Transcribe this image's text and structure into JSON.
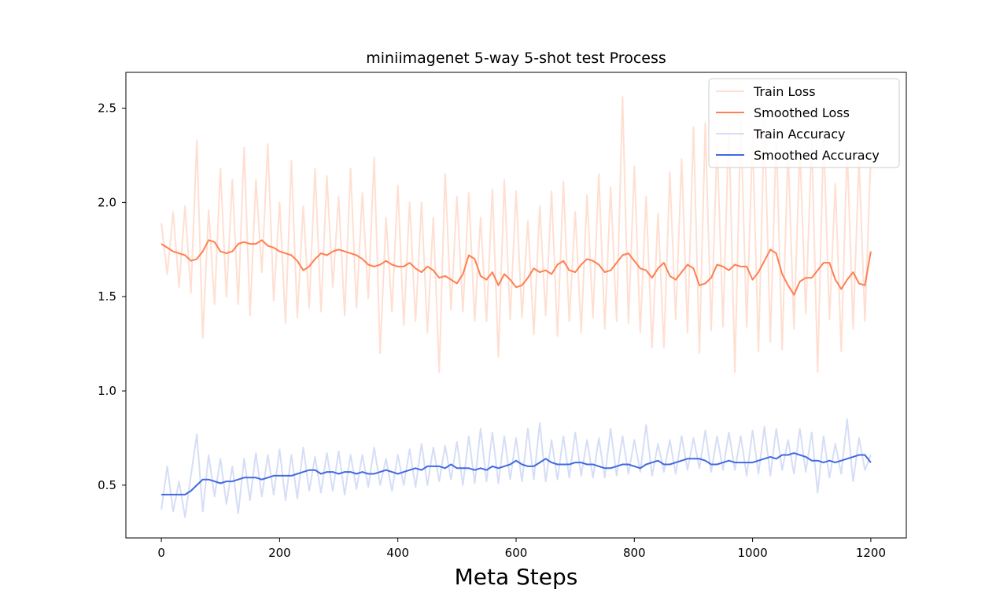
{
  "chart_data": {
    "type": "line",
    "title": "miniimagenet 5-way 5-shot test Process",
    "xlabel": "Meta Steps",
    "ylabel": "",
    "xlim": [
      -60,
      1260
    ],
    "ylim": [
      0.22,
      2.69
    ],
    "xticks": [
      0,
      200,
      400,
      600,
      800,
      1000,
      1200
    ],
    "xtick_labels": [
      "0",
      "200",
      "400",
      "600",
      "800",
      "1000",
      "1200"
    ],
    "yticks": [
      0.5,
      1.0,
      1.5,
      2.0,
      2.5
    ],
    "ytick_labels": [
      "0.5",
      "1.0",
      "1.5",
      "2.0",
      "2.5"
    ],
    "grid": false,
    "legend_position": "top-right",
    "colors": {
      "train_loss": "#ffdfd2",
      "smoothed_loss": "#ff7f50",
      "train_acc": "#d6def7",
      "smoothed_acc": "#4169e1"
    },
    "series": [
      {
        "name": "Train Loss",
        "key": "train_loss",
        "style": "raw-noisy",
        "x": [
          0,
          10,
          20,
          30,
          40,
          50,
          60,
          70,
          80,
          90,
          100,
          110,
          120,
          130,
          140,
          150,
          160,
          170,
          180,
          190,
          200,
          210,
          220,
          230,
          240,
          250,
          260,
          270,
          280,
          290,
          300,
          310,
          320,
          330,
          340,
          350,
          360,
          370,
          380,
          390,
          400,
          410,
          420,
          430,
          440,
          450,
          460,
          470,
          480,
          490,
          500,
          510,
          520,
          530,
          540,
          550,
          560,
          570,
          580,
          590,
          600,
          610,
          620,
          630,
          640,
          650,
          660,
          670,
          680,
          690,
          700,
          710,
          720,
          730,
          740,
          750,
          760,
          770,
          780,
          790,
          800,
          810,
          820,
          830,
          840,
          850,
          860,
          870,
          880,
          890,
          900,
          910,
          920,
          930,
          940,
          950,
          960,
          970,
          980,
          990,
          1000,
          1010,
          1020,
          1030,
          1040,
          1050,
          1060,
          1070,
          1080,
          1090,
          1100,
          1110,
          1120,
          1130,
          1140,
          1150,
          1160,
          1170,
          1180,
          1190,
          1200
        ],
        "y": [
          1.89,
          1.62,
          1.95,
          1.55,
          1.98,
          1.52,
          2.33,
          1.28,
          1.96,
          1.46,
          2.18,
          1.5,
          2.12,
          1.46,
          2.29,
          1.4,
          2.12,
          1.63,
          2.31,
          1.48,
          2.0,
          1.36,
          2.22,
          1.39,
          1.98,
          1.44,
          2.18,
          1.42,
          2.14,
          1.55,
          2.03,
          1.4,
          2.18,
          1.44,
          2.05,
          1.49,
          2.24,
          1.2,
          1.92,
          1.42,
          2.09,
          1.35,
          2.0,
          1.37,
          2.0,
          1.31,
          1.92,
          1.1,
          2.15,
          1.43,
          2.03,
          1.42,
          2.05,
          1.37,
          1.92,
          1.37,
          2.07,
          1.18,
          2.12,
          1.38,
          2.06,
          1.39,
          1.9,
          1.3,
          1.98,
          1.4,
          2.06,
          1.29,
          2.11,
          1.37,
          1.95,
          1.31,
          2.04,
          1.39,
          2.15,
          1.33,
          2.08,
          1.37,
          2.56,
          1.36,
          2.19,
          1.31,
          2.03,
          1.23,
          1.94,
          1.23,
          2.16,
          1.38,
          2.23,
          1.31,
          2.4,
          1.2,
          2.42,
          1.32,
          2.32,
          1.34,
          2.42,
          1.1,
          2.44,
          1.34,
          2.35,
          1.21,
          2.45,
          1.26,
          2.36,
          1.22,
          2.28,
          1.33,
          2.29,
          1.41,
          2.33,
          1.1,
          2.36,
          1.38,
          2.1,
          1.21,
          2.29,
          1.33,
          2.23,
          1.37,
          2.25
        ]
      },
      {
        "name": "Smoothed Loss",
        "key": "smoothed_loss",
        "style": "line",
        "x": [
          0,
          10,
          20,
          30,
          40,
          50,
          60,
          70,
          80,
          90,
          100,
          110,
          120,
          130,
          140,
          150,
          160,
          170,
          180,
          190,
          200,
          210,
          220,
          230,
          240,
          250,
          260,
          270,
          280,
          290,
          300,
          310,
          320,
          330,
          340,
          350,
          360,
          370,
          380,
          390,
          400,
          410,
          420,
          430,
          440,
          450,
          460,
          470,
          480,
          490,
          500,
          510,
          520,
          530,
          540,
          550,
          560,
          570,
          580,
          590,
          600,
          610,
          620,
          630,
          640,
          650,
          660,
          670,
          680,
          690,
          700,
          710,
          720,
          730,
          740,
          750,
          760,
          770,
          780,
          790,
          800,
          810,
          820,
          830,
          840,
          850,
          860,
          870,
          880,
          890,
          900,
          910,
          920,
          930,
          940,
          950,
          960,
          970,
          980,
          990,
          1000,
          1010,
          1020,
          1030,
          1040,
          1050,
          1060,
          1070,
          1080,
          1090,
          1100,
          1110,
          1120,
          1130,
          1140,
          1150,
          1160,
          1170,
          1180,
          1190,
          1200
        ],
        "y": [
          1.78,
          1.76,
          1.74,
          1.73,
          1.72,
          1.69,
          1.7,
          1.74,
          1.8,
          1.79,
          1.74,
          1.73,
          1.74,
          1.78,
          1.79,
          1.78,
          1.78,
          1.8,
          1.77,
          1.76,
          1.74,
          1.73,
          1.72,
          1.69,
          1.64,
          1.66,
          1.7,
          1.73,
          1.72,
          1.74,
          1.75,
          1.74,
          1.73,
          1.72,
          1.7,
          1.67,
          1.66,
          1.67,
          1.69,
          1.67,
          1.66,
          1.66,
          1.68,
          1.65,
          1.63,
          1.66,
          1.64,
          1.6,
          1.61,
          1.59,
          1.57,
          1.62,
          1.72,
          1.7,
          1.61,
          1.59,
          1.63,
          1.56,
          1.62,
          1.59,
          1.55,
          1.56,
          1.6,
          1.65,
          1.63,
          1.64,
          1.62,
          1.67,
          1.69,
          1.64,
          1.63,
          1.67,
          1.7,
          1.69,
          1.67,
          1.63,
          1.64,
          1.68,
          1.72,
          1.73,
          1.69,
          1.65,
          1.64,
          1.6,
          1.65,
          1.68,
          1.61,
          1.59,
          1.63,
          1.67,
          1.65,
          1.56,
          1.57,
          1.6,
          1.67,
          1.66,
          1.64,
          1.67,
          1.66,
          1.66,
          1.59,
          1.63,
          1.69,
          1.75,
          1.73,
          1.62,
          1.56,
          1.51,
          1.58,
          1.6,
          1.6,
          1.64,
          1.68,
          1.68,
          1.59,
          1.54,
          1.59,
          1.63,
          1.57,
          1.56,
          1.74
        ]
      },
      {
        "name": "Train Accuracy",
        "key": "train_acc",
        "style": "raw-noisy",
        "x": [
          0,
          10,
          20,
          30,
          40,
          50,
          60,
          70,
          80,
          90,
          100,
          110,
          120,
          130,
          140,
          150,
          160,
          170,
          180,
          190,
          200,
          210,
          220,
          230,
          240,
          250,
          260,
          270,
          280,
          290,
          300,
          310,
          320,
          330,
          340,
          350,
          360,
          370,
          380,
          390,
          400,
          410,
          420,
          430,
          440,
          450,
          460,
          470,
          480,
          490,
          500,
          510,
          520,
          530,
          540,
          550,
          560,
          570,
          580,
          590,
          600,
          610,
          620,
          630,
          640,
          650,
          660,
          670,
          680,
          690,
          700,
          710,
          720,
          730,
          740,
          750,
          760,
          770,
          780,
          790,
          800,
          810,
          820,
          830,
          840,
          850,
          860,
          870,
          880,
          890,
          900,
          910,
          920,
          930,
          940,
          950,
          960,
          970,
          980,
          990,
          1000,
          1010,
          1020,
          1030,
          1040,
          1050,
          1060,
          1070,
          1080,
          1090,
          1100,
          1110,
          1120,
          1130,
          1140,
          1150,
          1160,
          1170,
          1180,
          1190,
          1200
        ],
        "y": [
          0.37,
          0.6,
          0.36,
          0.52,
          0.33,
          0.55,
          0.77,
          0.36,
          0.66,
          0.44,
          0.64,
          0.4,
          0.6,
          0.35,
          0.64,
          0.42,
          0.67,
          0.44,
          0.66,
          0.45,
          0.69,
          0.42,
          0.66,
          0.43,
          0.7,
          0.47,
          0.65,
          0.46,
          0.67,
          0.47,
          0.68,
          0.45,
          0.66,
          0.48,
          0.66,
          0.49,
          0.7,
          0.5,
          0.64,
          0.47,
          0.66,
          0.5,
          0.69,
          0.49,
          0.72,
          0.5,
          0.7,
          0.52,
          0.71,
          0.53,
          0.73,
          0.5,
          0.76,
          0.51,
          0.8,
          0.52,
          0.78,
          0.51,
          0.76,
          0.53,
          0.75,
          0.52,
          0.8,
          0.53,
          0.83,
          0.52,
          0.74,
          0.53,
          0.76,
          0.54,
          0.78,
          0.55,
          0.74,
          0.54,
          0.75,
          0.54,
          0.8,
          0.55,
          0.76,
          0.56,
          0.74,
          0.57,
          0.82,
          0.55,
          0.72,
          0.57,
          0.74,
          0.56,
          0.76,
          0.58,
          0.75,
          0.59,
          0.79,
          0.57,
          0.76,
          0.58,
          0.78,
          0.58,
          0.76,
          0.55,
          0.79,
          0.56,
          0.81,
          0.55,
          0.8,
          0.58,
          0.74,
          0.56,
          0.8,
          0.57,
          0.78,
          0.46,
          0.76,
          0.54,
          0.72,
          0.56,
          0.85,
          0.52,
          0.75,
          0.58,
          0.66
        ]
      },
      {
        "name": "Smoothed Accuracy",
        "key": "smoothed_acc",
        "style": "line",
        "x": [
          0,
          10,
          20,
          30,
          40,
          50,
          60,
          70,
          80,
          90,
          100,
          110,
          120,
          130,
          140,
          150,
          160,
          170,
          180,
          190,
          200,
          210,
          220,
          230,
          240,
          250,
          260,
          270,
          280,
          290,
          300,
          310,
          320,
          330,
          340,
          350,
          360,
          370,
          380,
          390,
          400,
          410,
          420,
          430,
          440,
          450,
          460,
          470,
          480,
          490,
          500,
          510,
          520,
          530,
          540,
          550,
          560,
          570,
          580,
          590,
          600,
          610,
          620,
          630,
          640,
          650,
          660,
          670,
          680,
          690,
          700,
          710,
          720,
          730,
          740,
          750,
          760,
          770,
          780,
          790,
          800,
          810,
          820,
          830,
          840,
          850,
          860,
          870,
          880,
          890,
          900,
          910,
          920,
          930,
          940,
          950,
          960,
          970,
          980,
          990,
          1000,
          1010,
          1020,
          1030,
          1040,
          1050,
          1060,
          1070,
          1080,
          1090,
          1100,
          1110,
          1120,
          1130,
          1140,
          1150,
          1160,
          1170,
          1180,
          1190,
          1200
        ],
        "y": [
          0.45,
          0.45,
          0.45,
          0.45,
          0.45,
          0.47,
          0.5,
          0.53,
          0.53,
          0.52,
          0.51,
          0.52,
          0.52,
          0.53,
          0.54,
          0.54,
          0.54,
          0.53,
          0.54,
          0.55,
          0.55,
          0.55,
          0.55,
          0.56,
          0.57,
          0.58,
          0.58,
          0.56,
          0.57,
          0.57,
          0.56,
          0.57,
          0.57,
          0.56,
          0.57,
          0.56,
          0.56,
          0.57,
          0.58,
          0.57,
          0.56,
          0.57,
          0.58,
          0.59,
          0.58,
          0.6,
          0.6,
          0.6,
          0.59,
          0.61,
          0.59,
          0.59,
          0.59,
          0.58,
          0.59,
          0.58,
          0.6,
          0.59,
          0.6,
          0.61,
          0.63,
          0.61,
          0.6,
          0.6,
          0.62,
          0.64,
          0.62,
          0.61,
          0.61,
          0.61,
          0.62,
          0.62,
          0.61,
          0.61,
          0.6,
          0.59,
          0.59,
          0.6,
          0.61,
          0.61,
          0.6,
          0.59,
          0.61,
          0.62,
          0.63,
          0.61,
          0.61,
          0.62,
          0.63,
          0.64,
          0.64,
          0.64,
          0.63,
          0.61,
          0.61,
          0.62,
          0.63,
          0.62,
          0.62,
          0.62,
          0.62,
          0.63,
          0.64,
          0.65,
          0.64,
          0.66,
          0.66,
          0.67,
          0.66,
          0.65,
          0.63,
          0.63,
          0.62,
          0.63,
          0.62,
          0.63,
          0.64,
          0.65,
          0.66,
          0.66,
          0.62
        ]
      }
    ]
  }
}
